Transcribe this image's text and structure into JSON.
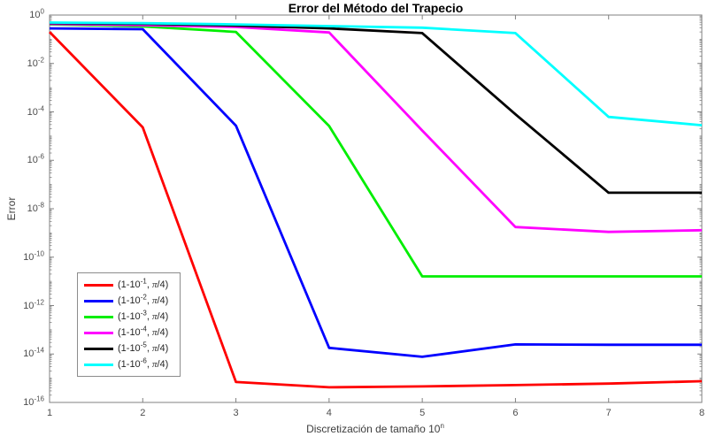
{
  "chart_data": {
    "type": "line",
    "title": "Error del Método del Trapecio",
    "xlabel": "Discretización de tamaño 10^n",
    "ylabel": "Error",
    "y_scale": "log",
    "grid": false,
    "xlim": [
      1,
      8
    ],
    "ylim_log10": [
      -16,
      0
    ],
    "x": [
      1,
      2,
      3,
      4,
      5,
      6,
      7,
      8
    ],
    "x_ticks": [
      1,
      2,
      3,
      4,
      5,
      6,
      7,
      8
    ],
    "x_tick_labels": [
      "1",
      "2",
      "3",
      "4",
      "5",
      "6",
      "7",
      "8"
    ],
    "y_ticks": [
      0,
      -2,
      -4,
      -6,
      -8,
      -10,
      -12,
      -14,
      -16
    ],
    "y_tick_labels": [
      "10^0",
      "10^-2",
      "10^-4",
      "10^-6",
      "10^-8",
      "10^-10",
      "10^-12",
      "10^-14",
      "10^-16"
    ],
    "legend_position": "southwest-inside",
    "series": [
      {
        "key": "red",
        "name": "(1-10^-1, π/4)",
        "color": "#ff0000",
        "values": [
          0.2,
          2.3e-05,
          7e-16,
          4.2e-16,
          4.6e-16,
          5.2e-16,
          6e-16,
          7.5e-16
        ]
      },
      {
        "key": "blue",
        "name": "(1-10^-2, π/4)",
        "color": "#0000ff",
        "values": [
          0.28,
          0.26,
          2.7e-05,
          1.8e-14,
          7.7e-15,
          2.5e-14,
          2.4e-14,
          2.4e-14
        ]
      },
      {
        "key": "green",
        "name": "(1-10^-3, π/4)",
        "color": "#00ee00",
        "values": [
          0.41,
          0.34,
          0.2,
          2.6e-05,
          1.6e-11,
          1.6e-11,
          1.6e-11,
          1.6e-11
        ]
      },
      {
        "key": "magenta",
        "name": "(1-10^-4, π/4)",
        "color": "#ff00ff",
        "values": [
          0.43,
          0.38,
          0.32,
          0.19,
          1.7e-05,
          1.75e-09,
          1.1e-09,
          1.3e-09
        ]
      },
      {
        "key": "black",
        "name": "(1-10^-5, π/4)",
        "color": "#000000",
        "values": [
          0.47,
          0.43,
          0.37,
          0.28,
          0.18,
          8e-05,
          4.6e-08,
          4.6e-08
        ]
      },
      {
        "key": "cyan",
        "name": "(1-10^-6, π/4)",
        "color": "#00ffff",
        "values": [
          0.49,
          0.46,
          0.41,
          0.35,
          0.3,
          0.18,
          6.2e-05,
          2.8e-05
        ]
      }
    ]
  },
  "colors": {
    "background": "#ffffff",
    "frame": "#808080",
    "tick_label": "#4d4d4d",
    "axis_label": "#3d3d3d",
    "title": "#000000",
    "legend_border": "#8c8c8c",
    "legend_background": "#ffffff"
  }
}
